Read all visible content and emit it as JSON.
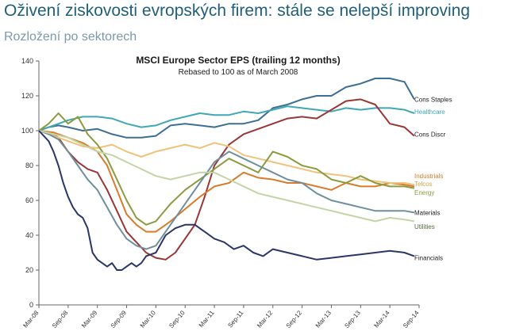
{
  "header": {
    "title": "Oživení ziskovosti evropských firem: stále se nelepší improving",
    "subtitle": "Rozložení po sektorech"
  },
  "chart_data": {
    "type": "line",
    "title": "MSCI Europe Sector EPS (trailing 12 months)",
    "subtitle": "Rebased to 100 as of March 2008",
    "xlabel": "",
    "ylabel": "",
    "x_ticks": [
      "Mar-08",
      "Sep-08",
      "Mar-09",
      "Sep-09",
      "Mar-10",
      "Sep-10",
      "Mar-11",
      "Sep-11",
      "Mar-12",
      "Sep-12",
      "Mar-13",
      "Sep-13",
      "Mar-14",
      "Sep-14"
    ],
    "ylim": [
      0,
      140
    ],
    "y_ticks": [
      0,
      20,
      40,
      60,
      80,
      100,
      120,
      140
    ],
    "grid": false,
    "x_unit": "months since Mar-08",
    "series": [
      {
        "name": "Cons Staples",
        "color": "#3d6e94",
        "x": [
          0,
          2,
          4,
          6,
          9,
          12,
          15,
          18,
          21,
          24,
          27,
          30,
          33,
          36,
          39,
          42,
          45,
          48,
          51,
          54,
          57,
          60,
          63,
          66,
          69,
          72,
          75,
          77
        ],
        "values": [
          100,
          102,
          103,
          102,
          100,
          101,
          98,
          96,
          96,
          97,
          103,
          104,
          103,
          102,
          104,
          104,
          106,
          113,
          115,
          118,
          120,
          120,
          125,
          127,
          130,
          130,
          128,
          118
        ]
      },
      {
        "name": "Healthcare",
        "color": "#3fa7b5",
        "x": [
          0,
          3,
          6,
          9,
          12,
          15,
          18,
          21,
          24,
          27,
          30,
          33,
          36,
          39,
          42,
          45,
          48,
          51,
          54,
          57,
          60,
          63,
          66,
          69,
          72,
          75,
          77
        ],
        "values": [
          100,
          103,
          106,
          108,
          108,
          107,
          104,
          102,
          103,
          106,
          108,
          110,
          109,
          109,
          111,
          110,
          112,
          114,
          113,
          112,
          111,
          113,
          112,
          113,
          113,
          112,
          110
        ]
      },
      {
        "name": "Cons Discr",
        "color": "#9c3535",
        "x": [
          0,
          2,
          4,
          6,
          8,
          10,
          12,
          14,
          16,
          18,
          20,
          22,
          24,
          26,
          28,
          30,
          32,
          34,
          36,
          39,
          42,
          45,
          48,
          51,
          54,
          57,
          60,
          63,
          66,
          69,
          72,
          75,
          77
        ],
        "values": [
          100,
          99,
          96,
          88,
          82,
          78,
          76,
          66,
          54,
          42,
          36,
          30,
          27,
          26,
          30,
          38,
          46,
          62,
          80,
          92,
          98,
          101,
          104,
          107,
          108,
          107,
          112,
          117,
          118,
          115,
          104,
          102,
          97
        ]
      },
      {
        "name": "Industrials",
        "color": "#d97b2a",
        "x": [
          0,
          3,
          6,
          9,
          12,
          14,
          16,
          18,
          20,
          22,
          24,
          27,
          30,
          33,
          36,
          39,
          42,
          45,
          48,
          51,
          54,
          57,
          60,
          63,
          66,
          69,
          72,
          75,
          77
        ],
        "values": [
          100,
          99,
          96,
          93,
          88,
          80,
          66,
          52,
          46,
          42,
          42,
          48,
          55,
          62,
          68,
          70,
          76,
          73,
          72,
          70,
          70,
          68,
          66,
          70,
          68,
          68,
          70,
          69,
          68
        ]
      },
      {
        "name": "Telcos",
        "color": "#f0c27a",
        "x": [
          0,
          3,
          6,
          9,
          12,
          15,
          18,
          21,
          24,
          27,
          30,
          33,
          36,
          39,
          42,
          45,
          48,
          51,
          54,
          57,
          60,
          63,
          66,
          69,
          72,
          75,
          77
        ],
        "values": [
          100,
          97,
          94,
          91,
          90,
          92,
          88,
          85,
          88,
          90,
          92,
          90,
          93,
          91,
          86,
          84,
          82,
          80,
          78,
          76,
          75,
          74,
          72,
          71,
          70,
          70,
          69
        ]
      },
      {
        "name": "Energy",
        "color": "#8c9b3e",
        "x": [
          0,
          2,
          4,
          6,
          8,
          10,
          12,
          14,
          16,
          18,
          20,
          22,
          24,
          27,
          30,
          33,
          36,
          39,
          42,
          45,
          48,
          51,
          54,
          57,
          60,
          63,
          66,
          69,
          72,
          75,
          77
        ],
        "values": [
          100,
          104,
          110,
          104,
          108,
          98,
          92,
          84,
          72,
          60,
          50,
          46,
          48,
          58,
          66,
          72,
          78,
          84,
          80,
          76,
          88,
          85,
          80,
          78,
          72,
          70,
          74,
          70,
          68,
          68,
          67
        ]
      },
      {
        "name": "Materials",
        "color": "#6e8f9c",
        "x": [
          0,
          2,
          4,
          6,
          8,
          10,
          12,
          14,
          16,
          18,
          20,
          22,
          24,
          27,
          30,
          33,
          36,
          39,
          42,
          45,
          48,
          51,
          54,
          57,
          60,
          63,
          66,
          69,
          72,
          75,
          77
        ],
        "values": [
          100,
          98,
          95,
          88,
          80,
          72,
          66,
          56,
          46,
          38,
          34,
          32,
          34,
          46,
          58,
          70,
          82,
          88,
          84,
          80,
          76,
          72,
          70,
          64,
          60,
          58,
          56,
          54,
          54,
          54,
          53
        ]
      },
      {
        "name": "Utilities",
        "color": "#c5d4a6",
        "x": [
          0,
          3,
          6,
          9,
          12,
          15,
          18,
          21,
          24,
          27,
          30,
          33,
          36,
          39,
          42,
          45,
          48,
          51,
          54,
          57,
          60,
          63,
          66,
          69,
          72,
          75,
          77
        ],
        "values": [
          100,
          98,
          96,
          92,
          88,
          86,
          82,
          78,
          74,
          72,
          74,
          76,
          76,
          72,
          68,
          64,
          62,
          60,
          58,
          56,
          54,
          52,
          50,
          48,
          50,
          49,
          48
        ]
      },
      {
        "name": "Financials",
        "color": "#2c3568",
        "x": [
          0,
          1,
          2,
          3,
          4,
          5,
          6,
          7,
          8,
          9,
          10,
          11,
          12,
          13,
          14,
          15,
          16,
          17,
          18,
          19,
          20,
          21,
          22,
          24,
          26,
          28,
          30,
          32,
          34,
          36,
          38,
          40,
          42,
          44,
          46,
          48,
          51,
          54,
          57,
          60,
          63,
          66,
          69,
          72,
          75,
          77
        ],
        "values": [
          100,
          97,
          94,
          88,
          80,
          70,
          62,
          56,
          52,
          50,
          44,
          30,
          26,
          24,
          22,
          24,
          20,
          20,
          22,
          24,
          22,
          24,
          28,
          30,
          40,
          44,
          46,
          46,
          42,
          38,
          36,
          32,
          34,
          30,
          28,
          32,
          30,
          28,
          26,
          27,
          28,
          29,
          30,
          31,
          30,
          28
        ]
      }
    ]
  }
}
